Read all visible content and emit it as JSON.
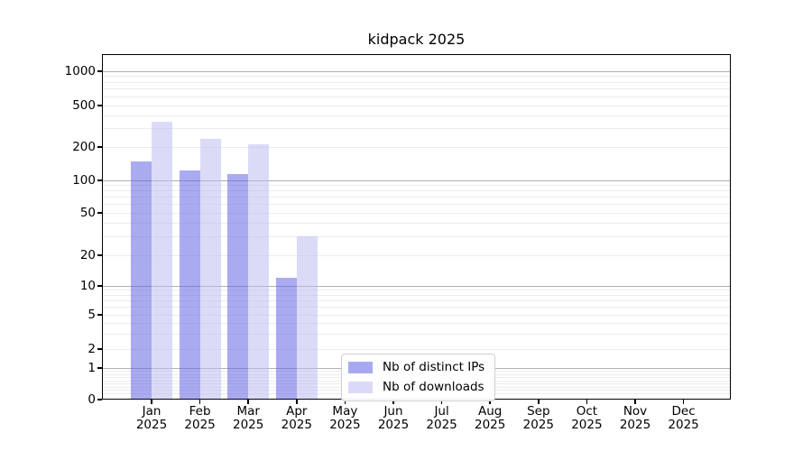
{
  "chart_data": {
    "type": "bar",
    "title": "kidpack 2025",
    "scale": "symlog",
    "grid": true,
    "categories": [
      "Jan",
      "Feb",
      "Mar",
      "Apr",
      "May",
      "Jun",
      "Jul",
      "Aug",
      "Sep",
      "Oct",
      "Nov",
      "Dec"
    ],
    "year": "2025",
    "series": [
      {
        "name": "Nb of distinct IPs",
        "fill": "#6464e6",
        "fill_alpha": 0.55,
        "legend_color": "#a9a9f2",
        "values": [
          148,
          123,
          114,
          12,
          0,
          0,
          0,
          0,
          0,
          0,
          0,
          0
        ]
      },
      {
        "name": "Nb of downloads",
        "fill": "#bebef3",
        "fill_alpha": 0.55,
        "legend_color": "#dadaf8",
        "values": [
          348,
          240,
          212,
          30,
          0,
          0,
          0,
          0,
          0,
          0,
          0,
          0
        ]
      }
    ],
    "y_ticks": [
      0,
      1,
      2,
      5,
      10,
      20,
      50,
      100,
      200,
      500,
      1000
    ],
    "major_gridlines": [
      1,
      10,
      100,
      1000
    ],
    "minor_gridlines": [
      0.2,
      0.3,
      0.4,
      0.5,
      0.6,
      0.7,
      0.8,
      0.9,
      2,
      3,
      4,
      5,
      6,
      7,
      8,
      9,
      20,
      30,
      40,
      50,
      60,
      70,
      80,
      90,
      200,
      300,
      400,
      500,
      600,
      700,
      800,
      900
    ],
    "ylim": [
      0,
      1400
    ],
    "xlabel": "",
    "ylabel": "",
    "legend_position": "inside lower center",
    "colors": {
      "grid_major": "#b0b0b0",
      "grid_minor": "#ececec",
      "spine": "#000000",
      "background": "#ffffff"
    }
  }
}
